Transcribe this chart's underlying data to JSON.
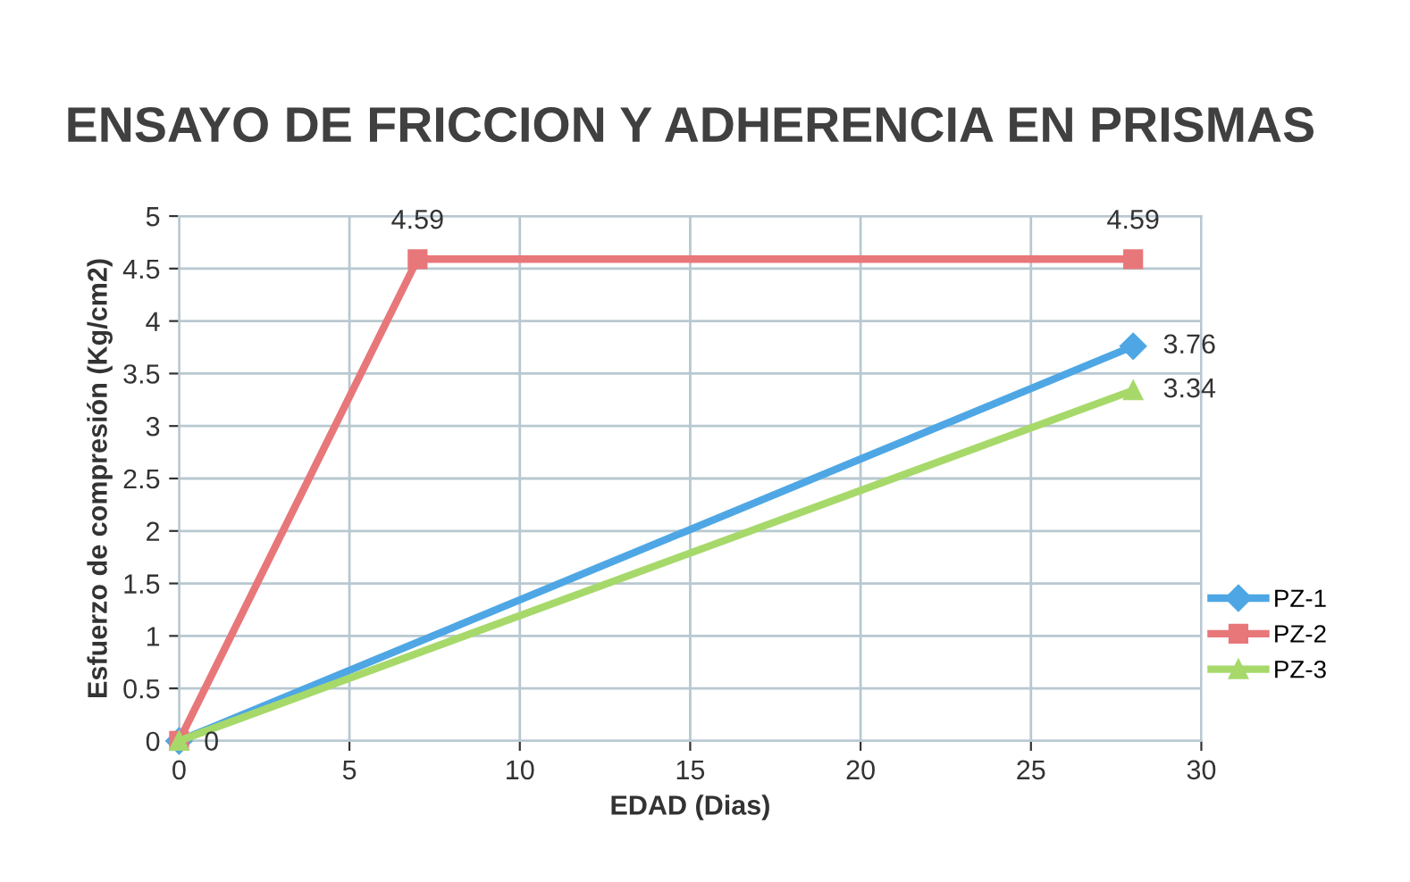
{
  "chart_data": {
    "type": "line",
    "title": "ENSAYO DE FRICCION Y ADHERENCIA EN PRISMAS",
    "xlabel": "EDAD (Dias)",
    "ylabel": "Esfuerzo de compresión (Kg/cm2)",
    "xlim": [
      0,
      30
    ],
    "xticks": [
      0,
      5,
      10,
      15,
      20,
      25,
      30
    ],
    "ylim": [
      0,
      5
    ],
    "yticks": [
      0,
      0.5,
      1,
      1.5,
      2,
      2.5,
      3,
      3.5,
      4,
      4.5,
      5
    ],
    "grid": true,
    "legend": "right",
    "series": [
      {
        "name": "PZ-1",
        "color": "#4ea7e4",
        "marker": "diamond",
        "x": [
          0,
          28
        ],
        "values": [
          0,
          3.76
        ],
        "value_labels": [
          null,
          "3.76"
        ]
      },
      {
        "name": "PZ-2",
        "color": "#e8777a",
        "marker": "square",
        "x": [
          0,
          7,
          28
        ],
        "values": [
          0,
          4.59,
          4.59
        ],
        "value_labels": [
          null,
          "4.59",
          "4.59"
        ]
      },
      {
        "name": "PZ-3",
        "color": "#a6d96a",
        "marker": "triangle",
        "x": [
          0,
          28
        ],
        "values": [
          0,
          3.34
        ],
        "value_labels": [
          "0",
          "3.34"
        ]
      }
    ]
  }
}
